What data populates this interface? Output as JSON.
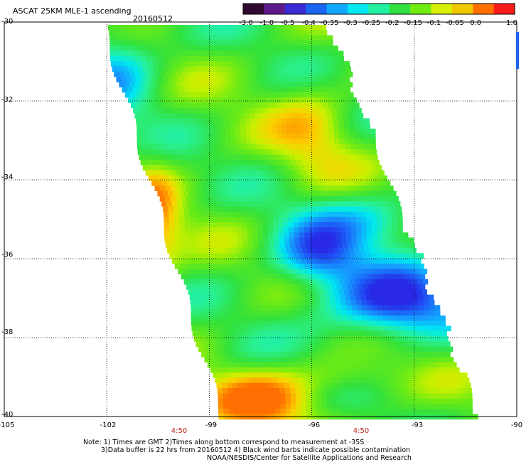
{
  "header": {
    "title": "ASCAT 25KM MLE-1 ascending",
    "date": "20160512"
  },
  "colorbar": {
    "labels": [
      "-3.0",
      "-1.0",
      "-0.5",
      "-0.4",
      "-0.35",
      "-0.3",
      "-0.25",
      "-0.2",
      "-0.15",
      "-0.1",
      "-0.05",
      "0.0",
      "1.0"
    ],
    "colors": [
      "#300a30",
      "#5e1a8a",
      "#3a2ad6",
      "#1a64f0",
      "#12a8ff",
      "#00e8f0",
      "#20f0a0",
      "#30e040",
      "#70ec10",
      "#d8f000",
      "#f0c800",
      "#ff7000",
      "#ff1a1a"
    ]
  },
  "axes": {
    "y_ticks": [
      "-30",
      "-32",
      "-34",
      "-36",
      "-38",
      "-40"
    ],
    "x_ticks": [
      "-105",
      "-102",
      "-99",
      "-96",
      "-93",
      "-90"
    ],
    "time_labels": [
      "4:50",
      "4:50"
    ]
  },
  "notes": {
    "line1": "Note: 1) Times are GMT  2)Times along bottom correspond to measurement at -35S",
    "line2": "3)Data buffer is 22 hrs from 20160512  4) Black wind barbs indicate possible contamination",
    "line3": "NOAA/NESDIS/Center for Satellite Applications and Research"
  },
  "map_data": {
    "type": "swath-heatmap",
    "lat_range": [
      -40,
      -30
    ],
    "lon_range": [
      -105,
      -90
    ],
    "dominant_values": "-0.2 to -0.1 (green), -0.4 (blue core near -36.5 to -37.5 lat, -95 to -92 lon), 0.0 (orange along west edge and south)",
    "grid": "dotted"
  }
}
